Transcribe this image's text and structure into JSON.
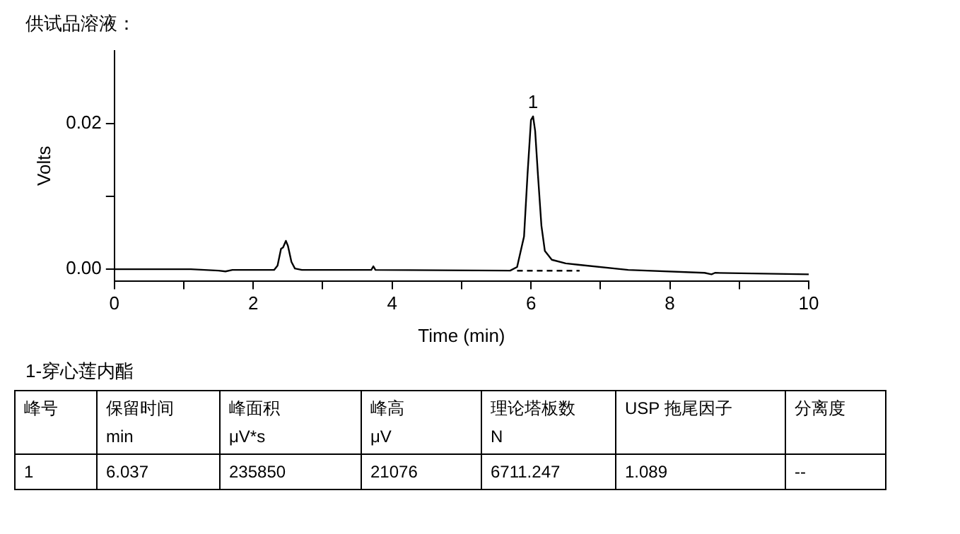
{
  "chart_data": {
    "type": "line",
    "title": "供试品溶液：",
    "xlabel": "Time (min)",
    "ylabel": "Volts",
    "series": [
      {
        "color": "#000000",
        "x": [
          0,
          1.1,
          1.5,
          1.6,
          1.7,
          2.3,
          2.35,
          2.4,
          2.43,
          2.47,
          2.5,
          2.55,
          2.6,
          2.7,
          3.7,
          3.73,
          3.76,
          5.7,
          5.8,
          5.9,
          5.95,
          6.0,
          6.03,
          6.06,
          6.1,
          6.15,
          6.2,
          6.3,
          6.5,
          6.7,
          7.4,
          8.5,
          8.6,
          8.65,
          10
        ],
        "values": [
          0,
          0,
          -0.0002,
          -0.0003,
          -0.0001,
          -0.0001,
          0.0005,
          0.0028,
          0.003,
          0.0039,
          0.0032,
          0.001,
          0.0001,
          -0.0001,
          -0.0001,
          0.0004,
          -0.0001,
          -0.0002,
          0.0003,
          0.0045,
          0.013,
          0.0205,
          0.021,
          0.019,
          0.013,
          0.006,
          0.0025,
          0.0013,
          0.0008,
          0.0006,
          -0.0001,
          -0.0005,
          -0.0007,
          -0.0005,
          -0.0007
        ]
      },
      {
        "color": "#000000",
        "line_style": "dashed",
        "x": [
          5.8,
          6.7
        ],
        "values": [
          -0.0002,
          -0.0002
        ]
      }
    ],
    "xlim": [
      0,
      10
    ],
    "xticks": [
      0,
      {
        "value": 1,
        "label": null
      },
      2,
      {
        "value": 3,
        "label": null
      },
      4,
      {
        "value": 5,
        "label": null
      },
      6,
      {
        "value": 7,
        "label": null
      },
      8,
      {
        "value": 9,
        "label": null
      },
      10
    ],
    "ylim": [
      -0.0016,
      0.03
    ],
    "yticks": [
      {
        "value": 0,
        "label": "0.00"
      },
      {
        "value": 0.01,
        "label": null
      },
      {
        "value": 0.02,
        "label": "0.02"
      }
    ],
    "grid": false,
    "legend": false,
    "marker": "none",
    "annotations": [
      {
        "text": "1",
        "x": 6.03,
        "y": 0.021
      },
      "1-穿心莲内酯",
      "峰号",
      "保留时间\nmin",
      "峰面积\nμV*s",
      "峰高\nμV",
      "理论塔板数\nN",
      "USP 拖尾因子",
      "分离度",
      "1",
      "6.037",
      "235850",
      "21076",
      "6711.247",
      "1.089",
      "--"
    ]
  }
}
